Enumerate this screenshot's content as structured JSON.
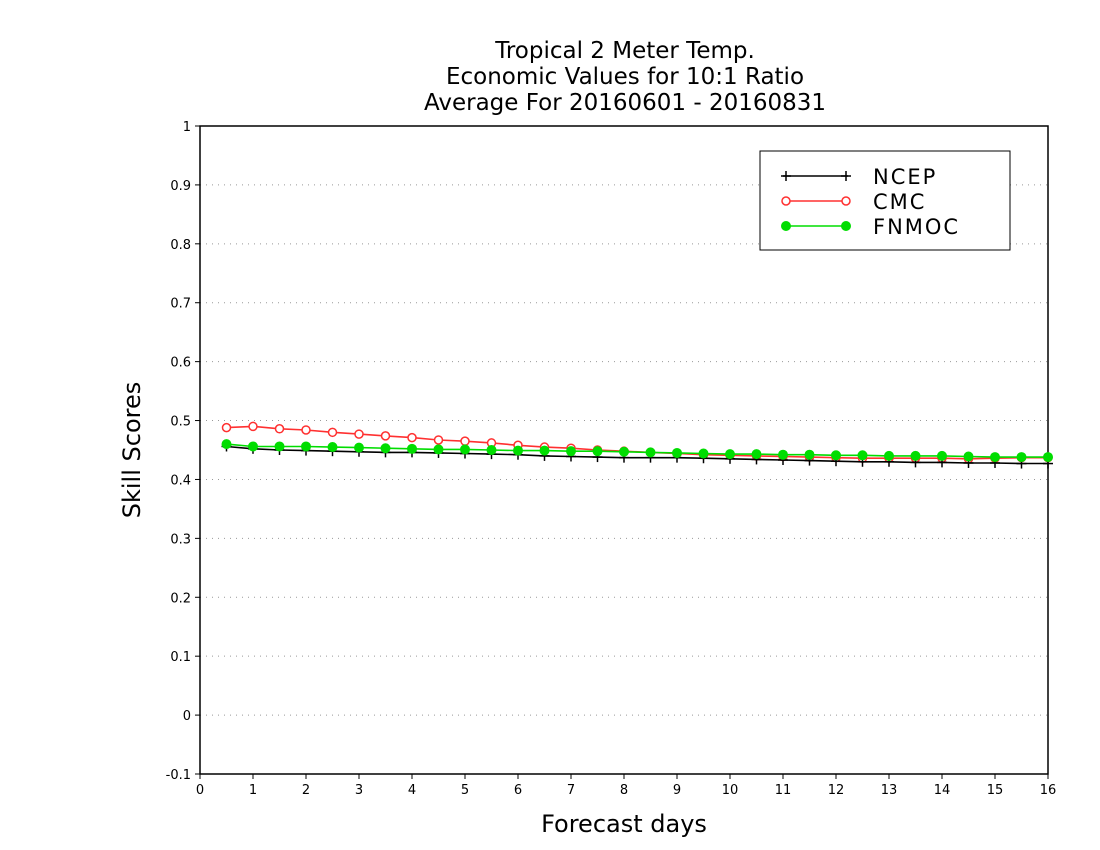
{
  "chart_data": {
    "type": "line",
    "title": [
      "Tropical 2 Meter Temp.",
      "Economic Values for 10:1 Ratio",
      "Average For 20160601 - 20160831"
    ],
    "xlabel": "Forecast days",
    "ylabel": "Skill Scores",
    "xlim": [
      0,
      16
    ],
    "ylim": [
      -0.1,
      1
    ],
    "xticks": [
      0,
      1,
      2,
      3,
      4,
      5,
      6,
      7,
      8,
      9,
      10,
      11,
      12,
      13,
      14,
      15,
      16
    ],
    "yticks": [
      -0.1,
      0,
      0.1,
      0.2,
      0.3,
      0.4,
      0.5,
      0.6,
      0.7,
      0.8,
      0.9,
      1
    ],
    "ytick_labels": [
      "-0.1",
      "0",
      "0.1",
      "0.2",
      "0.3",
      "0.4",
      "0.5",
      "0.6",
      "0.7",
      "0.8",
      "0.9",
      "1"
    ],
    "grid": "horizontal dotted",
    "legend_position": "top-right",
    "x": [
      0.5,
      1,
      1.5,
      2,
      2.5,
      3,
      3.5,
      4,
      4.5,
      5,
      5.5,
      6,
      6.5,
      7,
      7.5,
      8,
      8.5,
      9,
      9.5,
      10,
      10.5,
      11,
      11.5,
      12,
      12.5,
      13,
      13.5,
      14,
      14.5,
      15,
      15.5,
      16
    ],
    "series": [
      {
        "name": "NCEP",
        "color": "#000000",
        "marker": "plus",
        "values": [
          0.456,
          0.452,
          0.45,
          0.449,
          0.448,
          0.447,
          0.446,
          0.446,
          0.445,
          0.444,
          0.443,
          0.442,
          0.44,
          0.439,
          0.438,
          0.437,
          0.437,
          0.437,
          0.436,
          0.435,
          0.434,
          0.433,
          0.432,
          0.431,
          0.43,
          0.43,
          0.429,
          0.429,
          0.428,
          0.428,
          0.427,
          0.427
        ]
      },
      {
        "name": "CMC",
        "color": "#ff3030",
        "marker": "open-circle",
        "values": [
          0.488,
          0.49,
          0.486,
          0.484,
          0.48,
          0.477,
          0.474,
          0.471,
          0.467,
          0.465,
          0.462,
          0.458,
          0.455,
          0.453,
          0.45,
          0.448,
          0.446,
          0.444,
          0.442,
          0.441,
          0.44,
          0.439,
          0.438,
          0.437,
          0.436,
          0.436,
          0.436,
          0.436,
          0.435,
          0.436,
          0.437,
          0.437
        ]
      },
      {
        "name": "FNMOC",
        "color": "#00dd00",
        "marker": "filled-circle",
        "values": [
          0.46,
          0.456,
          0.456,
          0.456,
          0.455,
          0.454,
          0.453,
          0.452,
          0.451,
          0.451,
          0.45,
          0.449,
          0.449,
          0.448,
          0.448,
          0.447,
          0.446,
          0.445,
          0.444,
          0.443,
          0.443,
          0.442,
          0.442,
          0.441,
          0.441,
          0.44,
          0.44,
          0.44,
          0.439,
          0.438,
          0.438,
          0.438
        ]
      }
    ]
  }
}
